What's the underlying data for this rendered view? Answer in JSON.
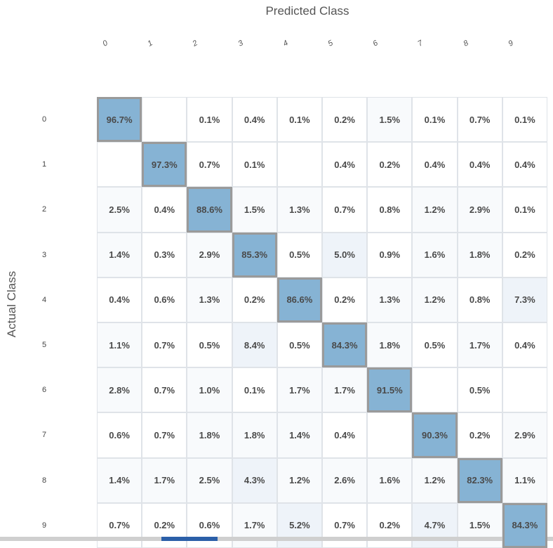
{
  "chart_data": {
    "type": "heatmap",
    "xlabel": "Predicted Class",
    "ylabel": "Actual Class",
    "x_categories": [
      "0",
      "1",
      "2",
      "3",
      "4",
      "5",
      "6",
      "7",
      "8",
      "9"
    ],
    "y_categories": [
      "0",
      "1",
      "2",
      "3",
      "4",
      "5",
      "6",
      "7",
      "8",
      "9"
    ],
    "values": [
      [
        "96.7%",
        "",
        "0.1%",
        "0.4%",
        "0.1%",
        "0.2%",
        "1.5%",
        "0.1%",
        "0.7%",
        "0.1%"
      ],
      [
        "",
        "97.3%",
        "0.7%",
        "0.1%",
        "",
        "0.4%",
        "0.2%",
        "0.4%",
        "0.4%",
        "0.4%"
      ],
      [
        "2.5%",
        "0.4%",
        "88.6%",
        "1.5%",
        "1.3%",
        "0.7%",
        "0.8%",
        "1.2%",
        "2.9%",
        "0.1%"
      ],
      [
        "1.4%",
        "0.3%",
        "2.9%",
        "85.3%",
        "0.5%",
        "5.0%",
        "0.9%",
        "1.6%",
        "1.8%",
        "0.2%"
      ],
      [
        "0.4%",
        "0.6%",
        "1.3%",
        "0.2%",
        "86.6%",
        "0.2%",
        "1.3%",
        "1.2%",
        "0.8%",
        "7.3%"
      ],
      [
        "1.1%",
        "0.7%",
        "0.5%",
        "8.4%",
        "0.5%",
        "84.3%",
        "1.8%",
        "0.5%",
        "1.7%",
        "0.4%"
      ],
      [
        "2.8%",
        "0.7%",
        "1.0%",
        "0.1%",
        "1.7%",
        "1.7%",
        "91.5%",
        "",
        "0.5%",
        ""
      ],
      [
        "0.6%",
        "0.7%",
        "1.8%",
        "1.8%",
        "1.4%",
        "0.4%",
        "",
        "90.3%",
        "0.2%",
        "2.9%"
      ],
      [
        "1.4%",
        "1.7%",
        "2.5%",
        "4.3%",
        "1.2%",
        "2.6%",
        "1.6%",
        "1.2%",
        "82.3%",
        "1.1%"
      ],
      [
        "0.7%",
        "0.2%",
        "0.6%",
        "1.7%",
        "5.2%",
        "0.7%",
        "0.2%",
        "4.7%",
        "1.5%",
        "84.3%"
      ]
    ],
    "diagonal_color": "#86b3d4",
    "offdiag_tint": "#eef3f9",
    "grid": true
  }
}
